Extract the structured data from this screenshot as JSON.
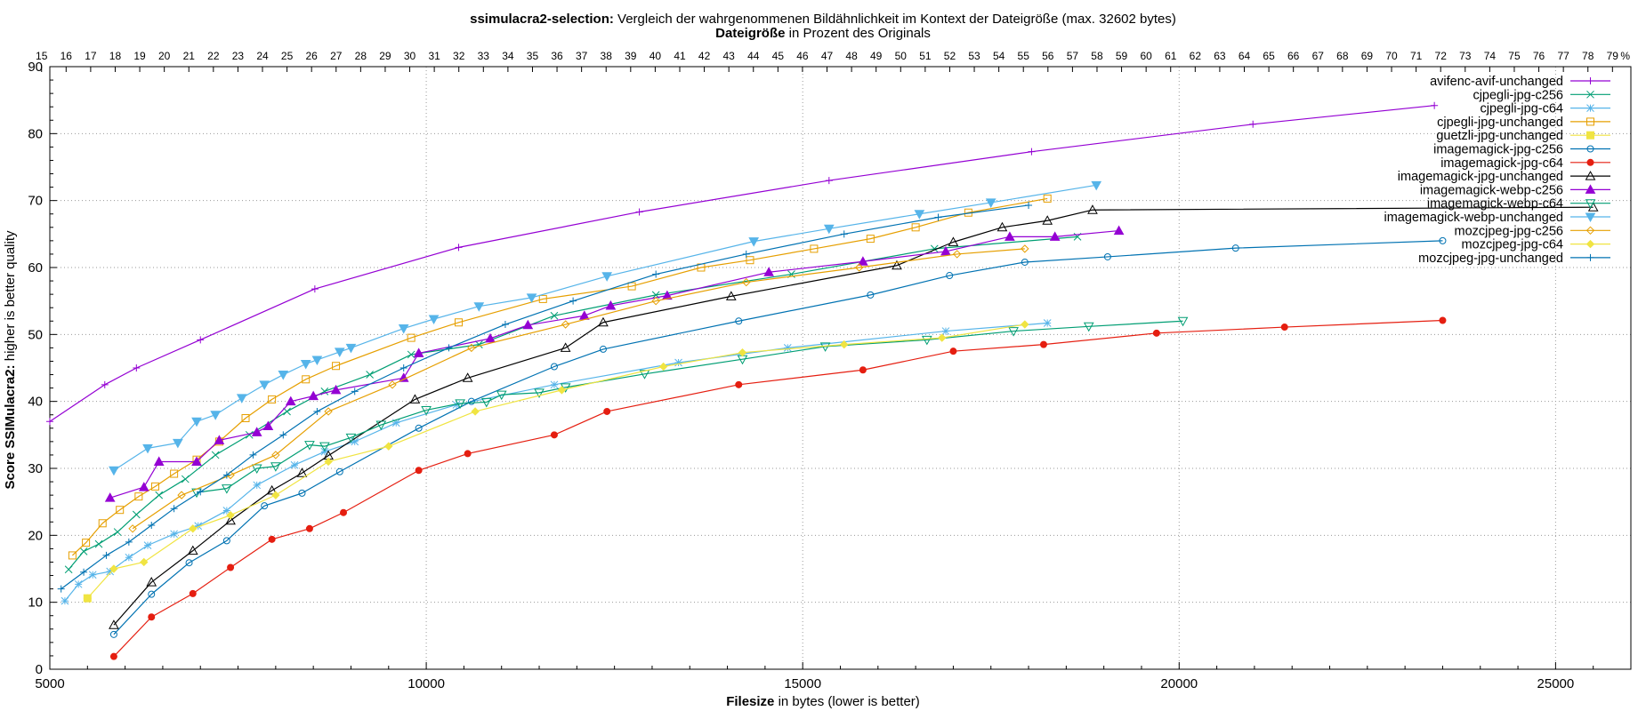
{
  "chart_data": {
    "type": "line",
    "title_bold": "ssimulacra2-selection:",
    "title_rest": " Vergleich der wahrgenommenen Bildähnlichkeit im Kontext der Dateigröße (max. 32602 bytes)",
    "x2label_bold": "Dateigröße",
    "x2label_rest": " in Prozent des Originals",
    "xlabel_bold": "Filesize",
    "xlabel_rest": " in bytes (lower is better)",
    "ylabel_bold": "Score SSIMulacra2:",
    "ylabel_rest": " higher is better quality",
    "xlim": [
      5000,
      26000
    ],
    "ylim": [
      0,
      90
    ],
    "xticks": [
      5000,
      10000,
      15000,
      20000,
      25000
    ],
    "yticks": [
      0,
      10,
      20,
      30,
      40,
      50,
      60,
      70,
      80,
      90
    ],
    "x2max_bytes": 32602,
    "x2ticks": [
      "15",
      "16",
      "17",
      "18",
      "19",
      "20",
      "21",
      "22",
      "23",
      "24",
      "25",
      "26",
      "27",
      "28",
      "29",
      "30",
      "31",
      "32",
      "33",
      "34",
      "35",
      "36",
      "37",
      "38",
      "39",
      "40",
      "41",
      "42",
      "43",
      "44",
      "45",
      "46",
      "47",
      "48",
      "49",
      "50",
      "51",
      "52",
      "53",
      "54",
      "55",
      "56",
      "57",
      "58",
      "59",
      "60",
      "61",
      "62",
      "63",
      "64",
      "65",
      "66",
      "67",
      "68",
      "69",
      "70",
      "71",
      "72",
      "73",
      "74",
      "75",
      "76",
      "77",
      "78",
      "79",
      "%"
    ],
    "grid": true,
    "legend_position": "top-right",
    "series": [
      {
        "name": "avifenc-avif-unchanged",
        "color": "#9400d3",
        "marker": "plus",
        "x": [
          5000,
          5730,
          6150,
          7000,
          8520,
          10430,
          12830,
          15350,
          18040,
          20980,
          23390
        ],
        "y": [
          37.0,
          42.5,
          45.0,
          49.2,
          56.8,
          63.0,
          68.3,
          73.0,
          77.3,
          81.4,
          84.2
        ]
      },
      {
        "name": "cjpegli-jpg-c256",
        "color": "#009e73",
        "marker": "cross",
        "x": [
          5250,
          5450,
          5650,
          5900,
          6150,
          6450,
          6800,
          7200,
          7650,
          8150,
          8650,
          9250,
          9800,
          10700,
          11700,
          13050,
          14850,
          16750,
          18650
        ],
        "y": [
          14.9,
          17.6,
          18.7,
          20.5,
          23.1,
          26.0,
          28.4,
          32.0,
          35.0,
          38.5,
          41.5,
          44.0,
          47.0,
          48.5,
          52.8,
          55.9,
          59.0,
          62.8,
          64.6
        ]
      },
      {
        "name": "cjpegli-jpg-c64",
        "color": "#56b4e9",
        "marker": "star",
        "x": [
          5200,
          5380,
          5570,
          5800,
          6050,
          6300,
          6650,
          6970,
          7350,
          7750,
          8250,
          8650,
          9050,
          9600,
          10400,
          11700,
          13350,
          14800,
          16900,
          18250
        ],
        "y": [
          10.2,
          12.7,
          14.1,
          14.6,
          16.7,
          18.5,
          20.2,
          21.4,
          23.7,
          27.5,
          30.5,
          32.5,
          34.0,
          36.8,
          39.5,
          42.5,
          45.8,
          48.0,
          50.5,
          51.7
        ]
      },
      {
        "name": "cjpegli-jpg-unchanged",
        "color": "#e69f00",
        "marker": "square",
        "x": [
          5300,
          5480,
          5700,
          5930,
          6180,
          6400,
          6650,
          6950,
          7250,
          7600,
          7950,
          8400,
          8800,
          9800,
          10430,
          11550,
          12730,
          13650,
          14300,
          15150,
          15900,
          16500,
          17200,
          18250
        ],
        "y": [
          17.0,
          18.9,
          21.8,
          23.8,
          25.8,
          27.3,
          29.2,
          31.3,
          34.0,
          37.5,
          40.3,
          43.3,
          45.3,
          49.5,
          51.8,
          55.3,
          57.2,
          60.0,
          61.1,
          62.8,
          64.3,
          66.0,
          68.2,
          70.3
        ]
      },
      {
        "name": "guetzli-jpg-unchanged",
        "color": "#f0e442",
        "marker": "filled-square",
        "x": [
          5500
        ],
        "y": [
          10.6
        ]
      },
      {
        "name": "imagemagick-jpg-c256",
        "color": "#0072b2",
        "marker": "circle",
        "x": [
          5850,
          6350,
          6850,
          7350,
          7850,
          8350,
          8850,
          9900,
          10600,
          11700,
          12350,
          14150,
          15900,
          16950,
          17950,
          19050,
          20750,
          23500
        ],
        "y": [
          5.2,
          11.2,
          15.9,
          19.2,
          24.4,
          26.3,
          29.5,
          36.0,
          40.0,
          45.2,
          47.8,
          52.0,
          55.9,
          58.8,
          60.8,
          61.6,
          62.9,
          64.0
        ]
      },
      {
        "name": "imagemagick-jpg-c64",
        "color": "#e51e10",
        "marker": "filled-circle",
        "x": [
          5850,
          6350,
          6900,
          7400,
          7950,
          8450,
          8900,
          9900,
          10550,
          11700,
          12400,
          14150,
          15800,
          17000,
          18200,
          19700,
          21400,
          23500
        ],
        "y": [
          1.9,
          7.8,
          11.3,
          15.2,
          19.4,
          21.0,
          23.4,
          29.7,
          32.2,
          35.0,
          38.5,
          42.5,
          44.7,
          47.5,
          48.5,
          50.2,
          51.1,
          52.1
        ]
      },
      {
        "name": "imagemagick-jpg-unchanged",
        "color": "#000000",
        "marker": "triangle",
        "x": [
          5850,
          6350,
          6900,
          7400,
          7950,
          8350,
          8700,
          9850,
          10550,
          11850,
          12350,
          14050,
          16250,
          17000,
          17650,
          18250,
          18850,
          25500
        ],
        "y": [
          6.6,
          13.0,
          17.7,
          22.2,
          26.7,
          29.3,
          31.9,
          40.3,
          43.5,
          48.0,
          51.8,
          55.7,
          60.3,
          63.8,
          66.0,
          67.0,
          68.6,
          69.0
        ]
      },
      {
        "name": "imagemagick-webp-c256",
        "color": "#9400d3",
        "marker": "filled-triangle",
        "x": [
          5800,
          6250,
          6450,
          6950,
          7250,
          7750,
          7900,
          8200,
          8500,
          8800,
          9700,
          9900,
          10850,
          11350,
          12100,
          12450,
          13200,
          14550,
          15800,
          16900,
          17750,
          18350,
          19200
        ],
        "y": [
          25.6,
          27.2,
          31.0,
          31.0,
          34.2,
          35.4,
          36.3,
          40.0,
          40.8,
          41.7,
          43.5,
          47.2,
          49.4,
          51.4,
          52.8,
          54.3,
          55.8,
          59.3,
          60.9,
          62.4,
          64.6,
          64.6,
          65.5
        ]
      },
      {
        "name": "imagemagick-webp-c64",
        "color": "#009e73",
        "marker": "down-triangle",
        "x": [
          6950,
          7350,
          7750,
          8000,
          8450,
          8650,
          9000,
          9400,
          10000,
          10450,
          10800,
          11000,
          11500,
          11850,
          12900,
          14200,
          15300,
          16650,
          17800,
          18800,
          20050
        ],
        "y": [
          26.4,
          27.0,
          30.0,
          30.3,
          33.5,
          33.3,
          34.6,
          36.5,
          38.7,
          39.7,
          39.9,
          41.0,
          41.3,
          42.1,
          44.1,
          46.3,
          48.2,
          49.2,
          50.5,
          51.2,
          52.0
        ]
      },
      {
        "name": "imagemagick-webp-unchanged",
        "color": "#56b4e9",
        "marker": "filled-down-triangle",
        "x": [
          5850,
          6300,
          6700,
          6950,
          7200,
          7550,
          7850,
          8100,
          8400,
          8550,
          8850,
          9000,
          9700,
          10100,
          10700,
          11400,
          12400,
          14350,
          15350,
          16550,
          17500,
          18900
        ],
        "y": [
          29.7,
          33.0,
          33.8,
          37.0,
          38.0,
          40.5,
          42.5,
          44.0,
          45.6,
          46.2,
          47.4,
          48.0,
          50.9,
          52.3,
          54.2,
          55.5,
          58.7,
          63.9,
          65.8,
          68.0,
          69.7,
          72.3
        ]
      },
      {
        "name": "mozcjpeg-jpg-c256",
        "color": "#e69f00",
        "marker": "diamond",
        "x": [
          6100,
          6750,
          7400,
          8000,
          8700,
          9550,
          10600,
          11850,
          13050,
          14250,
          15750,
          17050,
          17950
        ],
        "y": [
          21.0,
          26.0,
          29.0,
          32.0,
          38.5,
          42.5,
          48.0,
          51.5,
          55.0,
          57.8,
          60.0,
          62.0,
          62.8
        ]
      },
      {
        "name": "mozcjpeg-jpg-c64",
        "color": "#f0e442",
        "marker": "filled-diamond",
        "x": [
          5500,
          5850,
          6250,
          6900,
          7400,
          8000,
          8700,
          9500,
          10650,
          11800,
          13150,
          14200,
          15550,
          16850,
          17950
        ],
        "y": [
          10.6,
          15.0,
          16.0,
          21.0,
          23.0,
          26.0,
          31.0,
          33.3,
          38.5,
          41.7,
          45.2,
          47.3,
          48.5,
          49.5,
          51.5
        ]
      },
      {
        "name": "mozcjpeg-jpg-unchanged",
        "color": "#0072b2",
        "marker": "plus",
        "x": [
          5150,
          5450,
          5750,
          6050,
          6350,
          6650,
          7000,
          7350,
          7700,
          8100,
          8550,
          9050,
          9700,
          10300,
          11050,
          11950,
          13050,
          14250,
          15550,
          16800,
          18000
        ],
        "y": [
          12.0,
          14.5,
          17.0,
          19.0,
          21.5,
          24.0,
          26.5,
          29.0,
          32.0,
          35.0,
          38.5,
          41.5,
          45.0,
          48.0,
          51.5,
          55.0,
          59.0,
          62.0,
          65.0,
          67.5,
          69.3
        ]
      }
    ]
  }
}
